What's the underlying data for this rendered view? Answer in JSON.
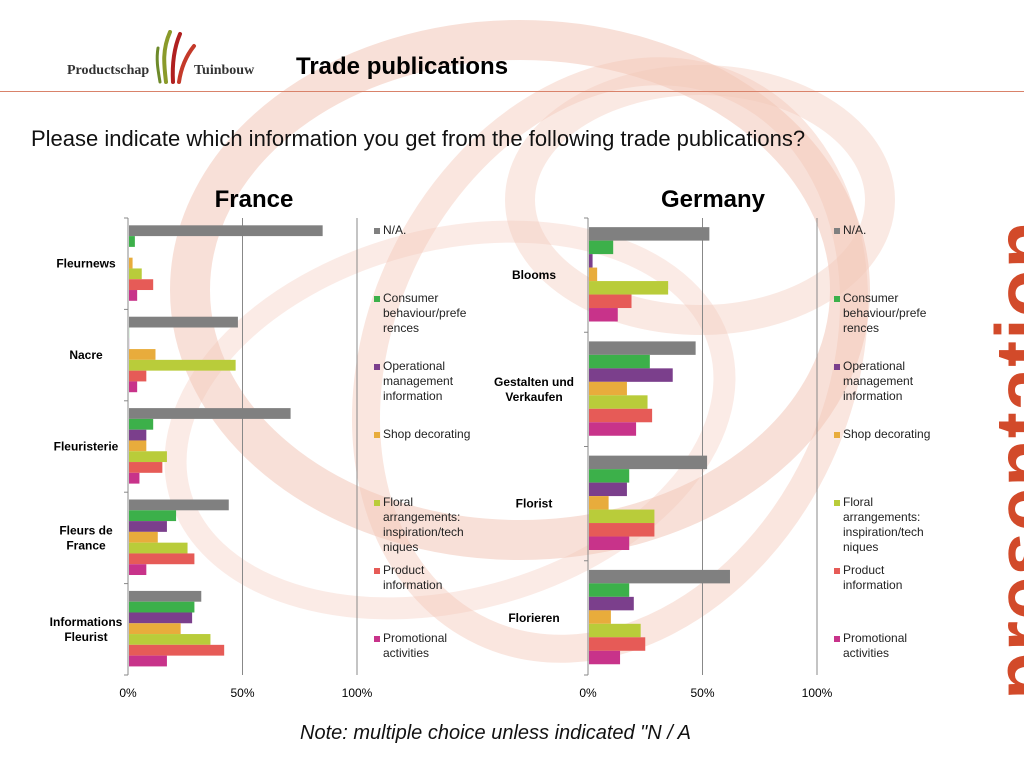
{
  "header": {
    "logo_left": "Productschap",
    "logo_right": "Tuinbouw",
    "title": "Trade publications"
  },
  "question": "Please indicate which information you get from the following trade publications?",
  "note": "Note: multiple choice unless indicated \"N / A",
  "side_word": "presentation",
  "colors": {
    "accent": "#d24a2a",
    "series": [
      "#808080",
      "#3cb04a",
      "#7b3f8c",
      "#e8ac3c",
      "#b9cc3a",
      "#e65b57",
      "#c8338a"
    ]
  },
  "chart_data": [
    {
      "type": "bar",
      "orientation": "horizontal",
      "title": "France",
      "categories": [
        "Fleurnews",
        "Nacre",
        "Fleuristerie",
        "Fleurs de France",
        "Informations Fleurist"
      ],
      "series": [
        {
          "name": "N/A.",
          "values": [
            85,
            48,
            71,
            44,
            32
          ]
        },
        {
          "name": "Consumer behaviour/preferences",
          "values": [
            3,
            0.5,
            11,
            21,
            29
          ]
        },
        {
          "name": "Operational management information",
          "values": [
            0,
            0.5,
            8,
            17,
            28
          ]
        },
        {
          "name": "Shop decorating",
          "values": [
            2,
            12,
            8,
            13,
            23
          ]
        },
        {
          "name": "Floral arrangements: inspiration/techniques",
          "values": [
            6,
            47,
            17,
            26,
            36
          ]
        },
        {
          "name": "Product information",
          "values": [
            11,
            8,
            15,
            29,
            42
          ]
        },
        {
          "name": "Promotional activities",
          "values": [
            4,
            4,
            5,
            8,
            17
          ]
        }
      ],
      "xlim": [
        0,
        100
      ],
      "x_ticks": [
        "0%",
        "50%",
        "100%"
      ],
      "legend_position": "right",
      "legend_labels": [
        "N/A.",
        "Consumer behaviour/prefe rences",
        "Operational management information",
        "Shop decorating",
        "Floral arrangements: inspiration/tech niques",
        "Product information",
        "Promotional activities"
      ]
    },
    {
      "type": "bar",
      "orientation": "horizontal",
      "title": "Germany",
      "categories": [
        "Blooms",
        "Gestalten und Verkaufen",
        "Florist",
        "Florieren"
      ],
      "series": [
        {
          "name": "N/A.",
          "values": [
            53,
            47,
            52,
            62
          ]
        },
        {
          "name": "Consumer behaviour/preferences",
          "values": [
            11,
            27,
            18,
            18
          ]
        },
        {
          "name": "Operational management information",
          "values": [
            2,
            37,
            17,
            20
          ]
        },
        {
          "name": "Shop decorating",
          "values": [
            4,
            17,
            9,
            10
          ]
        },
        {
          "name": "Floral arrangements: inspiration/techniques",
          "values": [
            35,
            26,
            29,
            23
          ]
        },
        {
          "name": "Product information",
          "values": [
            19,
            28,
            29,
            25
          ]
        },
        {
          "name": "Promotional activities",
          "values": [
            13,
            21,
            18,
            14
          ]
        }
      ],
      "xlim": [
        0,
        100
      ],
      "x_ticks": [
        "0%",
        "50%",
        "100%"
      ],
      "legend_position": "right",
      "legend_labels": [
        "N/A.",
        "Consumer behaviour/prefe rences",
        "Operational management information",
        "Shop decorating",
        "Floral arrangements: inspiration/tech niques",
        "Product information",
        "Promotional activities"
      ]
    }
  ]
}
